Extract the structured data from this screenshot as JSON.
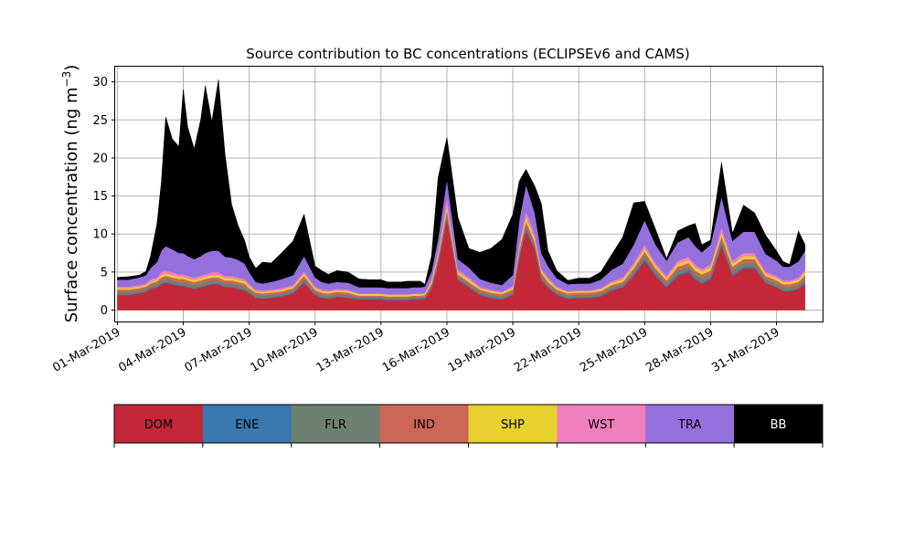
{
  "chart_data": {
    "type": "area",
    "stacked": true,
    "title": "Source contribution to BC concentrations (ECLIPSEv6 and CAMS)",
    "ylabel_main": "Surface concentration (ng m",
    "ylabel_sup": "−3",
    "ylabel_close": ")",
    "xlabel": "",
    "ylim": [
      -1.5,
      32
    ],
    "xlim": [
      -0.1,
      32.1
    ],
    "yticks": [
      0,
      5,
      10,
      15,
      20,
      25,
      30
    ],
    "xticks": [
      {
        "x": 0,
        "label": "01-Mar-2019"
      },
      {
        "x": 3,
        "label": "04-Mar-2019"
      },
      {
        "x": 6,
        "label": "07-Mar-2019"
      },
      {
        "x": 9,
        "label": "10-Mar-2019"
      },
      {
        "x": 12,
        "label": "13-Mar-2019"
      },
      {
        "x": 15,
        "label": "16-Mar-2019"
      },
      {
        "x": 18,
        "label": "19-Mar-2019"
      },
      {
        "x": 21,
        "label": "22-Mar-2019"
      },
      {
        "x": 24,
        "label": "25-Mar-2019"
      },
      {
        "x": 27,
        "label": "28-Mar-2019"
      },
      {
        "x": 30,
        "label": "31-Mar-2019"
      }
    ],
    "grid": true,
    "legend_placement": "below",
    "x": [
      0.0,
      0.5,
      1.0,
      1.3,
      1.5,
      1.8,
      2.0,
      2.2,
      2.5,
      2.8,
      3.0,
      3.2,
      3.5,
      3.8,
      4.0,
      4.3,
      4.6,
      4.9,
      5.2,
      5.5,
      5.8,
      6.0,
      6.3,
      6.6,
      7.0,
      7.5,
      8.0,
      8.5,
      9.0,
      9.3,
      9.6,
      10.0,
      10.5,
      11.0,
      11.5,
      12.0,
      12.3,
      12.6,
      12.9,
      13.2,
      13.5,
      13.8,
      14.0,
      14.3,
      14.6,
      15.0,
      15.5,
      16.0,
      16.5,
      17.0,
      17.5,
      18.0,
      18.3,
      18.6,
      19.0,
      19.3,
      19.6,
      20.0,
      20.5,
      21.0,
      21.5,
      22.0,
      22.5,
      23.0,
      23.5,
      24.0,
      24.5,
      25.0,
      25.5,
      26.0,
      26.3,
      26.6,
      27.0,
      27.5,
      28.0,
      28.5,
      29.0,
      29.5,
      30.0,
      30.3,
      30.6,
      31.0,
      31.3
    ],
    "series": [
      {
        "name": "DOM",
        "color": "#c42838",
        "values": [
          2.0,
          2.0,
          2.2,
          2.4,
          2.8,
          3.0,
          3.4,
          3.6,
          3.4,
          3.2,
          3.2,
          3.0,
          2.8,
          3.0,
          3.2,
          3.4,
          3.4,
          3.0,
          3.0,
          2.8,
          2.6,
          2.2,
          1.6,
          1.5,
          1.6,
          1.8,
          2.2,
          3.6,
          2.0,
          1.6,
          1.5,
          1.7,
          1.6,
          1.4,
          1.4,
          1.4,
          1.3,
          1.3,
          1.3,
          1.3,
          1.4,
          1.4,
          1.5,
          2.8,
          6.0,
          12.0,
          4.0,
          3.0,
          2.0,
          1.6,
          1.4,
          2.0,
          7.0,
          10.5,
          8.0,
          4.0,
          3.0,
          2.0,
          1.5,
          1.6,
          1.6,
          1.8,
          2.6,
          3.0,
          4.5,
          6.5,
          4.5,
          3.0,
          4.5,
          5.0,
          4.0,
          3.5,
          4.0,
          8.5,
          4.5,
          5.5,
          5.5,
          3.6,
          3.0,
          2.5,
          2.5,
          2.8,
          3.5
        ]
      },
      {
        "name": "ENE",
        "color": "#3a78b0",
        "values": [
          0.1,
          0.1,
          0.1,
          0.1,
          0.1,
          0.1,
          0.1,
          0.1,
          0.1,
          0.1,
          0.1,
          0.1,
          0.1,
          0.1,
          0.1,
          0.1,
          0.1,
          0.1,
          0.1,
          0.1,
          0.1,
          0.1,
          0.1,
          0.1,
          0.1,
          0.1,
          0.1,
          0.1,
          0.1,
          0.1,
          0.1,
          0.1,
          0.1,
          0.1,
          0.1,
          0.1,
          0.1,
          0.1,
          0.1,
          0.1,
          0.1,
          0.1,
          0.1,
          0.1,
          0.2,
          0.2,
          0.1,
          0.1,
          0.1,
          0.1,
          0.1,
          0.1,
          0.2,
          0.2,
          0.2,
          0.1,
          0.1,
          0.1,
          0.1,
          0.1,
          0.1,
          0.1,
          0.1,
          0.1,
          0.2,
          0.2,
          0.2,
          0.1,
          0.2,
          0.2,
          0.2,
          0.2,
          0.2,
          0.2,
          0.2,
          0.2,
          0.2,
          0.1,
          0.1,
          0.1,
          0.1,
          0.1,
          0.1
        ]
      },
      {
        "name": "FLR",
        "color": "#6e8070",
        "values": [
          0.3,
          0.3,
          0.3,
          0.3,
          0.3,
          0.4,
          0.4,
          0.4,
          0.4,
          0.4,
          0.4,
          0.4,
          0.4,
          0.4,
          0.4,
          0.4,
          0.4,
          0.4,
          0.4,
          0.4,
          0.4,
          0.3,
          0.3,
          0.3,
          0.3,
          0.3,
          0.3,
          0.4,
          0.3,
          0.3,
          0.3,
          0.3,
          0.3,
          0.2,
          0.2,
          0.2,
          0.2,
          0.2,
          0.2,
          0.2,
          0.2,
          0.2,
          0.2,
          0.3,
          0.4,
          0.5,
          0.3,
          0.3,
          0.3,
          0.3,
          0.3,
          0.3,
          0.4,
          0.5,
          0.4,
          0.4,
          0.3,
          0.3,
          0.3,
          0.3,
          0.3,
          0.3,
          0.3,
          0.3,
          0.4,
          0.5,
          0.4,
          0.4,
          0.5,
          0.5,
          0.5,
          0.5,
          0.5,
          0.5,
          0.5,
          0.5,
          0.5,
          0.4,
          0.4,
          0.4,
          0.4,
          0.4,
          0.5
        ]
      },
      {
        "name": "IND",
        "color": "#cc6657",
        "values": [
          0.3,
          0.3,
          0.3,
          0.3,
          0.3,
          0.3,
          0.4,
          0.4,
          0.4,
          0.4,
          0.4,
          0.4,
          0.4,
          0.4,
          0.4,
          0.4,
          0.4,
          0.4,
          0.4,
          0.4,
          0.4,
          0.3,
          0.3,
          0.3,
          0.3,
          0.3,
          0.3,
          0.4,
          0.3,
          0.3,
          0.3,
          0.3,
          0.3,
          0.2,
          0.2,
          0.2,
          0.2,
          0.2,
          0.2,
          0.2,
          0.2,
          0.2,
          0.2,
          0.3,
          0.4,
          0.5,
          0.3,
          0.3,
          0.3,
          0.3,
          0.3,
          0.3,
          0.4,
          0.5,
          0.4,
          0.4,
          0.3,
          0.3,
          0.3,
          0.3,
          0.3,
          0.3,
          0.3,
          0.3,
          0.4,
          0.5,
          0.4,
          0.4,
          0.5,
          0.5,
          0.5,
          0.5,
          0.5,
          0.5,
          0.5,
          0.5,
          0.5,
          0.4,
          0.4,
          0.4,
          0.4,
          0.4,
          0.5
        ]
      },
      {
        "name": "SHP",
        "color": "#e8d030",
        "values": [
          0.2,
          0.2,
          0.2,
          0.2,
          0.2,
          0.2,
          0.3,
          0.3,
          0.3,
          0.3,
          0.3,
          0.3,
          0.3,
          0.3,
          0.3,
          0.3,
          0.3,
          0.3,
          0.3,
          0.3,
          0.3,
          0.3,
          0.2,
          0.2,
          0.2,
          0.2,
          0.2,
          0.3,
          0.2,
          0.2,
          0.2,
          0.2,
          0.2,
          0.2,
          0.2,
          0.2,
          0.2,
          0.2,
          0.2,
          0.2,
          0.2,
          0.2,
          0.2,
          0.3,
          0.4,
          0.5,
          0.3,
          0.3,
          0.2,
          0.2,
          0.2,
          0.3,
          0.4,
          0.5,
          0.4,
          0.3,
          0.3,
          0.2,
          0.2,
          0.2,
          0.2,
          0.2,
          0.3,
          0.3,
          0.3,
          0.4,
          0.3,
          0.3,
          0.4,
          0.4,
          0.4,
          0.4,
          0.4,
          0.5,
          0.4,
          0.4,
          0.4,
          0.3,
          0.3,
          0.3,
          0.3,
          0.3,
          0.4
        ]
      },
      {
        "name": "WST",
        "color": "#f27fbd",
        "values": [
          0.2,
          0.2,
          0.2,
          0.2,
          0.3,
          0.3,
          0.4,
          0.4,
          0.4,
          0.3,
          0.3,
          0.3,
          0.3,
          0.3,
          0.3,
          0.4,
          0.4,
          0.3,
          0.3,
          0.3,
          0.3,
          0.2,
          0.2,
          0.2,
          0.2,
          0.2,
          0.2,
          0.3,
          0.2,
          0.2,
          0.2,
          0.2,
          0.2,
          0.1,
          0.1,
          0.1,
          0.1,
          0.1,
          0.1,
          0.1,
          0.1,
          0.1,
          0.1,
          0.3,
          0.5,
          1.0,
          0.3,
          0.3,
          0.2,
          0.2,
          0.1,
          0.2,
          0.6,
          0.8,
          0.6,
          0.3,
          0.3,
          0.2,
          0.1,
          0.1,
          0.1,
          0.2,
          0.2,
          0.3,
          0.4,
          0.5,
          0.4,
          0.3,
          0.4,
          0.4,
          0.4,
          0.3,
          0.4,
          0.7,
          0.4,
          0.4,
          0.4,
          0.3,
          0.3,
          0.2,
          0.2,
          0.3,
          0.3
        ]
      },
      {
        "name": "TRA",
        "color": "#9370db",
        "values": [
          0.9,
          0.9,
          1.0,
          1.1,
          1.5,
          2.0,
          2.8,
          3.2,
          3.0,
          2.8,
          2.8,
          2.6,
          2.4,
          2.6,
          2.8,
          2.8,
          2.8,
          2.5,
          2.4,
          2.3,
          2.0,
          1.6,
          1.0,
          0.9,
          1.0,
          1.2,
          1.3,
          2.0,
          1.2,
          1.0,
          0.9,
          0.9,
          0.9,
          0.8,
          0.8,
          0.8,
          0.8,
          0.8,
          0.8,
          0.8,
          0.8,
          0.8,
          0.8,
          1.0,
          1.5,
          2.5,
          1.4,
          1.3,
          1.0,
          0.9,
          0.9,
          1.4,
          3.0,
          3.5,
          2.8,
          2.0,
          1.5,
          1.1,
          0.9,
          0.9,
          0.9,
          1.1,
          1.5,
          1.8,
          2.4,
          3.2,
          2.4,
          2.0,
          2.4,
          2.6,
          2.4,
          2.2,
          2.6,
          4.0,
          2.6,
          2.8,
          2.8,
          2.3,
          2.0,
          1.8,
          1.8,
          2.1,
          2.5
        ]
      },
      {
        "name": "BB",
        "color": "#000000",
        "values": [
          0.3,
          0.4,
          0.3,
          0.5,
          1.5,
          5.0,
          9.0,
          17.0,
          14.5,
          14.0,
          21.5,
          17.0,
          14.5,
          18.0,
          22.0,
          17.0,
          22.5,
          13.5,
          7.0,
          4.5,
          3.0,
          2.0,
          1.8,
          2.8,
          2.5,
          3.5,
          4.5,
          5.5,
          1.5,
          1.5,
          1.2,
          1.5,
          1.4,
          1.1,
          1.0,
          1.0,
          0.8,
          0.8,
          0.8,
          0.9,
          0.8,
          0.8,
          0.3,
          2.0,
          8.0,
          5.5,
          5.5,
          2.5,
          3.5,
          4.5,
          6.0,
          8.0,
          5.0,
          2.0,
          3.5,
          6.5,
          2.0,
          1.0,
          0.5,
          0.7,
          0.7,
          1.0,
          2.0,
          3.5,
          5.5,
          2.5,
          2.0,
          0.3,
          1.5,
          1.5,
          3.0,
          1.0,
          0.6,
          4.5,
          1.0,
          3.5,
          2.5,
          2.5,
          1.3,
          0.7,
          0.3,
          4.0,
          0.8
        ]
      }
    ]
  }
}
